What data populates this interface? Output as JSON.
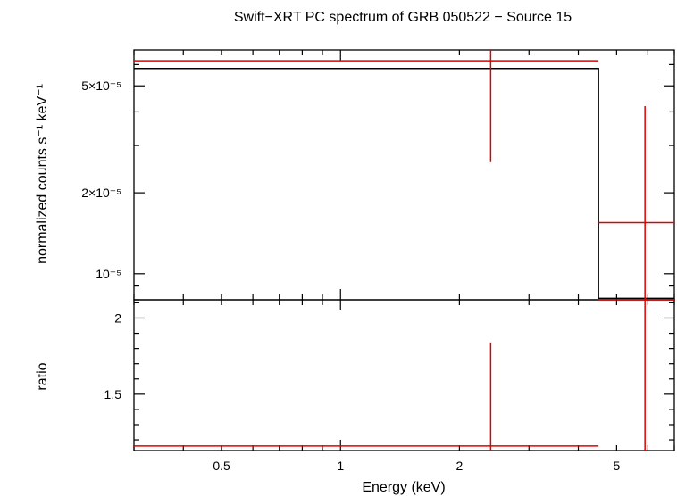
{
  "chart_data": {
    "type": "line",
    "title": "Swift−XRT PC spectrum of GRB 050522 − Source 15",
    "xlabel": "Energy (keV)",
    "x_scale": "log",
    "xlim": [
      0.3,
      7.0
    ],
    "x_tick_labels": [
      {
        "value": 0.5,
        "label": "0.5"
      },
      {
        "value": 1,
        "label": "1"
      },
      {
        "value": 2,
        "label": "2"
      },
      {
        "value": 5,
        "label": "5"
      }
    ],
    "panels": [
      {
        "name": "spectrum",
        "ylabel": "normalized counts s⁻¹ keV⁻¹",
        "y_scale": "log",
        "ylim": [
          8e-06,
          6.8e-05
        ],
        "y_tick_labels": [
          {
            "value": 1e-05,
            "label": "10⁻⁵"
          },
          {
            "value": 2e-05,
            "label": "2×10⁻⁵"
          },
          {
            "value": 5e-05,
            "label": "5×10⁻⁵"
          }
        ],
        "data_points": [
          {
            "x_lo": 0.3,
            "x_hi": 4.5,
            "x": 2.4,
            "y": 6.2e-05,
            "y_lo": 2.6e-05,
            "y_hi": 6.8e-05
          },
          {
            "x_lo": 4.5,
            "x_hi": 7.0,
            "x": 5.9,
            "y": 1.55e-05,
            "y_lo": 8e-06,
            "y_hi": 4.2e-05
          }
        ],
        "model_steps": [
          {
            "x_lo": 0.3,
            "x_hi": 4.5,
            "y": 5.8e-05
          },
          {
            "x_lo": 4.5,
            "x_hi": 7.0,
            "y": 8.1e-06
          }
        ]
      },
      {
        "name": "ratio",
        "ylabel": "ratio",
        "y_scale": "linear",
        "ylim": [
          1.13,
          2.12
        ],
        "y_tick_labels": [
          {
            "value": 1.5,
            "label": "1.5"
          },
          {
            "value": 2,
            "label": "2"
          }
        ],
        "data_points": [
          {
            "x_lo": 0.3,
            "x_hi": 4.5,
            "x": 2.4,
            "y": 1.16,
            "y_lo": 1.13,
            "y_hi": 1.84
          },
          {
            "x_lo": 4.5,
            "x_hi": 7.0,
            "x": 5.9,
            "y": 2.15,
            "y_lo": 1.13,
            "y_hi": 2.15
          }
        ]
      }
    ],
    "colors": {
      "data": "#e00000",
      "model": "#000000",
      "axes": "#000000"
    }
  }
}
